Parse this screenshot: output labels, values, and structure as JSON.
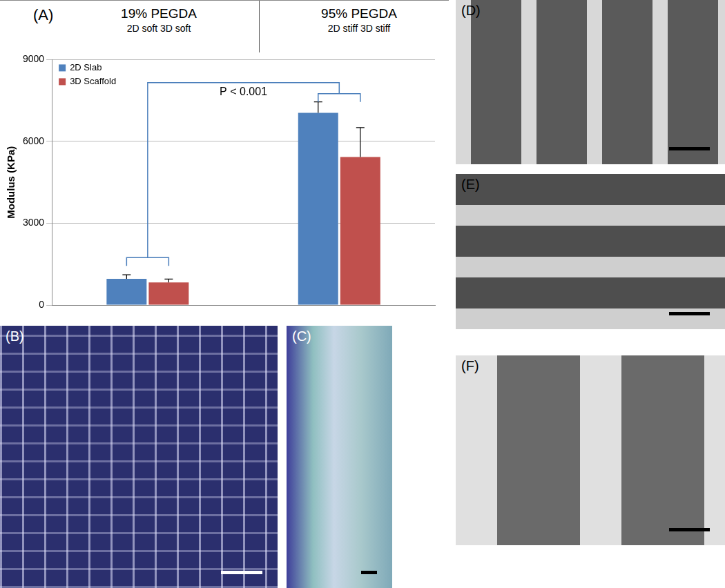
{
  "chart_data": {
    "type": "bar",
    "categories": [
      "19% PEGDA",
      "95% PEGDA"
    ],
    "y_label": "Modulus (KPa)",
    "series": [
      {
        "name": "2D Slab",
        "color": "#4f81bd",
        "values": [
          960,
          7050
        ],
        "errors": [
          150,
          400
        ]
      },
      {
        "name": "3D Scaffold",
        "color": "#c0504d",
        "values": [
          830,
          5430
        ],
        "errors": [
          120,
          1080
        ]
      }
    ],
    "ylim": [
      0,
      9000
    ],
    "yticks": [
      0,
      3000,
      6000,
      9000
    ],
    "grid": true,
    "legend": "top left",
    "tick_labels": "y",
    "annotations": {
      "panel": "(A)",
      "group_subtitles": [
        "2D soft  3D soft",
        "2D stiff  3D stiff"
      ],
      "significance": "P < 0.001"
    }
  },
  "images": [
    {
      "label": "(B)"
    },
    {
      "label": "(C)"
    },
    {
      "label": "(D)"
    },
    {
      "label": "(E)"
    },
    {
      "label": "(F)"
    }
  ]
}
